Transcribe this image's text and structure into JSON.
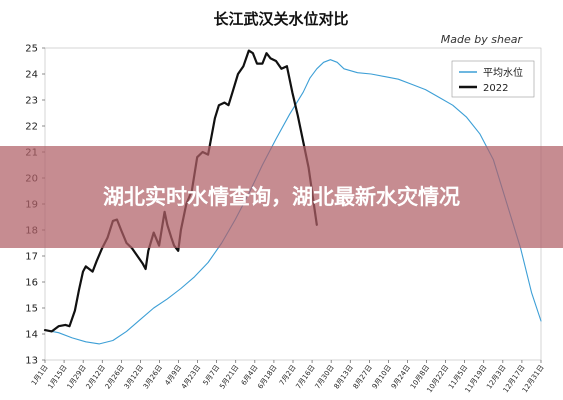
{
  "overlay": {
    "headline": "湖北实时水情查询，湖北最新水灾情况"
  },
  "chart_data": {
    "type": "line",
    "title": "长江武汉关水位对比",
    "subtitle": "Made by shear",
    "xlabel": "",
    "ylabel": "",
    "ylim": [
      13,
      25
    ],
    "yticks": [
      13,
      14,
      15,
      16,
      17,
      18,
      19,
      20,
      21,
      22,
      23,
      24,
      25
    ],
    "xlim": [
      0,
      365
    ],
    "x_tick_labels": [
      "1月1日",
      "1月15日",
      "1月29日",
      "2月12日",
      "2月26日",
      "3月12日",
      "3月26日",
      "4月9日",
      "4月23日",
      "5月7日",
      "5月21日",
      "6月4日",
      "6月18日",
      "7月2日",
      "7月16日",
      "7月30日",
      "8月13日",
      "8月27日",
      "9月10日",
      "9月24日",
      "10月8日",
      "10月22日",
      "11月5日",
      "11月19日",
      "12月3日",
      "12月17日",
      "12月31日"
    ],
    "grid": false,
    "legend": "top-right",
    "series": [
      {
        "name": "平均水位",
        "color": "#3d9fd6",
        "points": [
          [
            0,
            14.15
          ],
          [
            10,
            14.05
          ],
          [
            20,
            13.85
          ],
          [
            30,
            13.7
          ],
          [
            40,
            13.62
          ],
          [
            50,
            13.75
          ],
          [
            60,
            14.1
          ],
          [
            70,
            14.55
          ],
          [
            80,
            15.0
          ],
          [
            90,
            15.35
          ],
          [
            100,
            15.75
          ],
          [
            110,
            16.2
          ],
          [
            120,
            16.75
          ],
          [
            130,
            17.5
          ],
          [
            140,
            18.4
          ],
          [
            150,
            19.4
          ],
          [
            160,
            20.5
          ],
          [
            170,
            21.5
          ],
          [
            180,
            22.45
          ],
          [
            190,
            23.3
          ],
          [
            195,
            23.85
          ],
          [
            200,
            24.2
          ],
          [
            205,
            24.45
          ],
          [
            210,
            24.55
          ],
          [
            215,
            24.45
          ],
          [
            220,
            24.2
          ],
          [
            230,
            24.05
          ],
          [
            240,
            24.0
          ],
          [
            250,
            23.9
          ],
          [
            260,
            23.8
          ],
          [
            270,
            23.6
          ],
          [
            280,
            23.4
          ],
          [
            290,
            23.1
          ],
          [
            300,
            22.8
          ],
          [
            310,
            22.35
          ],
          [
            320,
            21.7
          ],
          [
            330,
            20.7
          ],
          [
            340,
            19.0
          ],
          [
            350,
            17.3
          ],
          [
            358,
            15.6
          ],
          [
            365,
            14.5
          ]
        ]
      },
      {
        "name": "2022",
        "color": "#111111",
        "points": [
          [
            0,
            14.15
          ],
          [
            5,
            14.1
          ],
          [
            10,
            14.3
          ],
          [
            15,
            14.35
          ],
          [
            18,
            14.3
          ],
          [
            22,
            14.9
          ],
          [
            25,
            15.7
          ],
          [
            28,
            16.4
          ],
          [
            30,
            16.6
          ],
          [
            35,
            16.4
          ],
          [
            38,
            16.8
          ],
          [
            42,
            17.3
          ],
          [
            46,
            17.7
          ],
          [
            50,
            18.35
          ],
          [
            53,
            18.4
          ],
          [
            56,
            18.0
          ],
          [
            60,
            17.5
          ],
          [
            64,
            17.3
          ],
          [
            68,
            17.0
          ],
          [
            72,
            16.7
          ],
          [
            74,
            16.5
          ],
          [
            76,
            17.2
          ],
          [
            80,
            17.9
          ],
          [
            84,
            17.4
          ],
          [
            88,
            18.7
          ],
          [
            90,
            18.2
          ],
          [
            93,
            17.7
          ],
          [
            95,
            17.4
          ],
          [
            98,
            17.2
          ],
          [
            100,
            18.0
          ],
          [
            104,
            19.0
          ],
          [
            108,
            19.5
          ],
          [
            112,
            20.8
          ],
          [
            116,
            21.0
          ],
          [
            120,
            20.9
          ],
          [
            125,
            22.3
          ],
          [
            128,
            22.8
          ],
          [
            132,
            22.9
          ],
          [
            135,
            22.8
          ],
          [
            138,
            23.3
          ],
          [
            142,
            24.0
          ],
          [
            146,
            24.3
          ],
          [
            150,
            24.9
          ],
          [
            153,
            24.8
          ],
          [
            156,
            24.4
          ],
          [
            160,
            24.4
          ],
          [
            163,
            24.8
          ],
          [
            166,
            24.6
          ],
          [
            170,
            24.5
          ],
          [
            174,
            24.2
          ],
          [
            178,
            24.3
          ],
          [
            182,
            23.3
          ],
          [
            186,
            22.4
          ],
          [
            190,
            21.4
          ],
          [
            194,
            20.4
          ],
          [
            197,
            19.3
          ],
          [
            200,
            18.2
          ]
        ]
      }
    ]
  }
}
